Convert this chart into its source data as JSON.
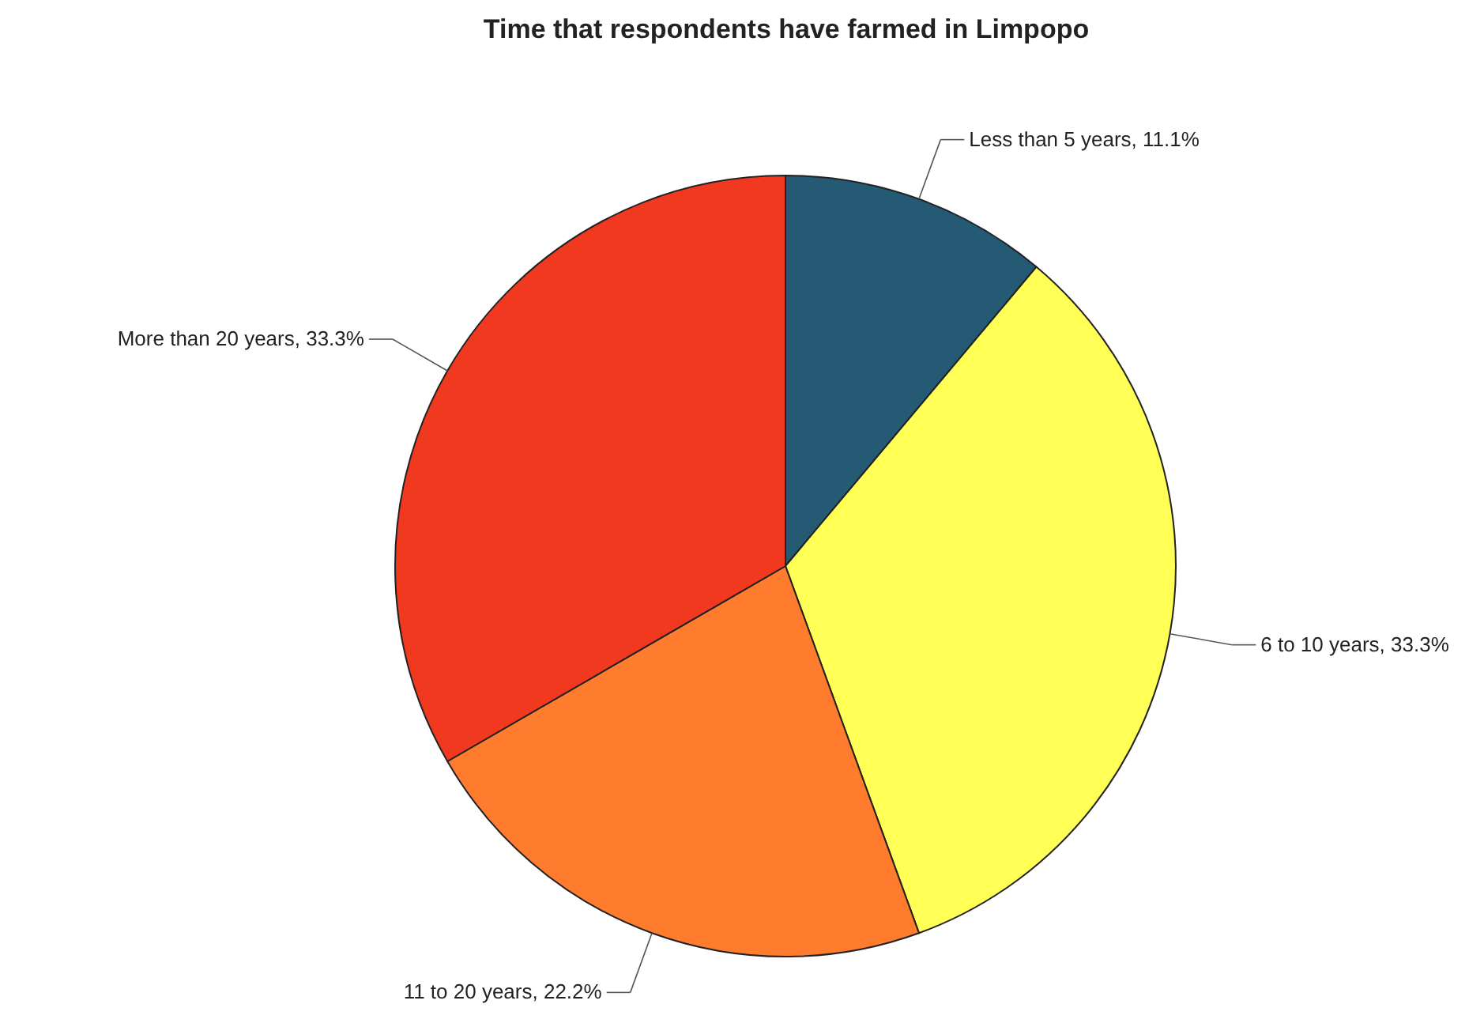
{
  "chart_data": {
    "type": "pie",
    "title": "Time that respondents have farmed in Limpopo",
    "categories": [
      "Less than 5 years",
      "6 to 10 years",
      "11 to 20 years",
      "More than 20 years"
    ],
    "values": [
      11.1,
      33.3,
      22.2,
      33.3
    ],
    "value_labels": [
      "11.1%",
      "33.3%",
      "22.2%",
      "33.3%"
    ],
    "colors": [
      "#245a74",
      "#ffff55",
      "#ff7b2e",
      "#f0391f"
    ],
    "legend": false
  }
}
